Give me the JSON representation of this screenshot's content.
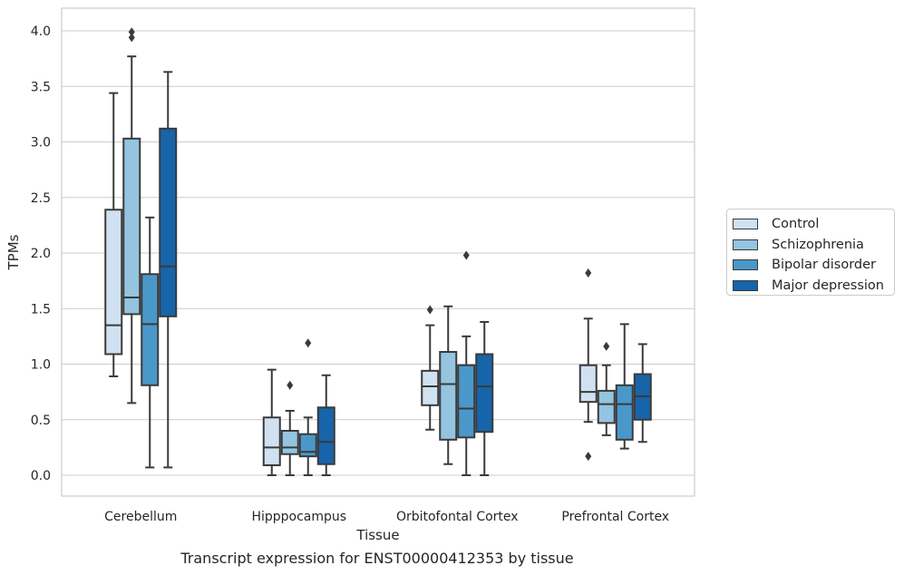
{
  "chart_data": {
    "type": "box",
    "title": "Transcript expression for ENST00000412353 by tissue",
    "xlabel": "Tissue",
    "ylabel": "TPMs",
    "ylim": [
      -0.19,
      4.2
    ],
    "yticks": [
      "0.0",
      "0.5",
      "1.0",
      "1.5",
      "2.0",
      "2.5",
      "3.0",
      "3.5",
      "4.0"
    ],
    "grid": true,
    "legend_position": "right",
    "categories": [
      "Cerebellum",
      "Hipppocampus",
      "Orbitofontal Cortex",
      "Prefrontal Cortex"
    ],
    "series": [
      {
        "name": "Control",
        "color": "#d0e1f2",
        "boxes": [
          {
            "min": 0.89,
            "q1": 1.09,
            "median": 1.35,
            "q3": 2.39,
            "max": 3.44,
            "outliers": []
          },
          {
            "min": 0.0,
            "q1": 0.09,
            "median": 0.25,
            "q3": 0.52,
            "max": 0.95,
            "outliers": []
          },
          {
            "min": 0.41,
            "q1": 0.63,
            "median": 0.8,
            "q3": 0.94,
            "max": 1.35,
            "outliers": [
              1.49
            ]
          },
          {
            "min": 0.48,
            "q1": 0.66,
            "median": 0.75,
            "q3": 0.99,
            "max": 1.41,
            "outliers": [
              1.82,
              0.17
            ]
          }
        ]
      },
      {
        "name": "Schizophrenia",
        "color": "#94c4df",
        "boxes": [
          {
            "min": 0.65,
            "q1": 1.45,
            "median": 1.6,
            "q3": 3.03,
            "max": 3.77,
            "outliers": [
              3.94,
              3.99
            ]
          },
          {
            "min": 0.0,
            "q1": 0.19,
            "median": 0.25,
            "q3": 0.4,
            "max": 0.58,
            "outliers": [
              0.81
            ]
          },
          {
            "min": 0.1,
            "q1": 0.32,
            "median": 0.82,
            "q3": 1.11,
            "max": 1.52,
            "outliers": []
          },
          {
            "min": 0.36,
            "q1": 0.47,
            "median": 0.64,
            "q3": 0.76,
            "max": 0.99,
            "outliers": [
              1.16
            ]
          }
        ]
      },
      {
        "name": "Bipolar disorder",
        "color": "#4a98c9",
        "boxes": [
          {
            "min": 0.07,
            "q1": 0.81,
            "median": 1.36,
            "q3": 1.81,
            "max": 2.32,
            "outliers": []
          },
          {
            "min": 0.0,
            "q1": 0.17,
            "median": 0.21,
            "q3": 0.37,
            "max": 0.52,
            "outliers": [
              1.19
            ]
          },
          {
            "min": 0.0,
            "q1": 0.34,
            "median": 0.6,
            "q3": 0.99,
            "max": 1.25,
            "outliers": [
              1.98
            ]
          },
          {
            "min": 0.24,
            "q1": 0.32,
            "median": 0.64,
            "q3": 0.81,
            "max": 1.36,
            "outliers": []
          }
        ]
      },
      {
        "name": "Major depression",
        "color": "#1764ab",
        "boxes": [
          {
            "min": 0.07,
            "q1": 1.43,
            "median": 1.88,
            "q3": 3.12,
            "max": 3.63,
            "outliers": []
          },
          {
            "min": 0.0,
            "q1": 0.1,
            "median": 0.3,
            "q3": 0.61,
            "max": 0.9,
            "outliers": []
          },
          {
            "min": 0.0,
            "q1": 0.39,
            "median": 0.8,
            "q3": 1.09,
            "max": 1.38,
            "outliers": []
          },
          {
            "min": 0.3,
            "q1": 0.5,
            "median": 0.71,
            "q3": 0.91,
            "max": 1.18,
            "outliers": []
          }
        ]
      }
    ]
  }
}
